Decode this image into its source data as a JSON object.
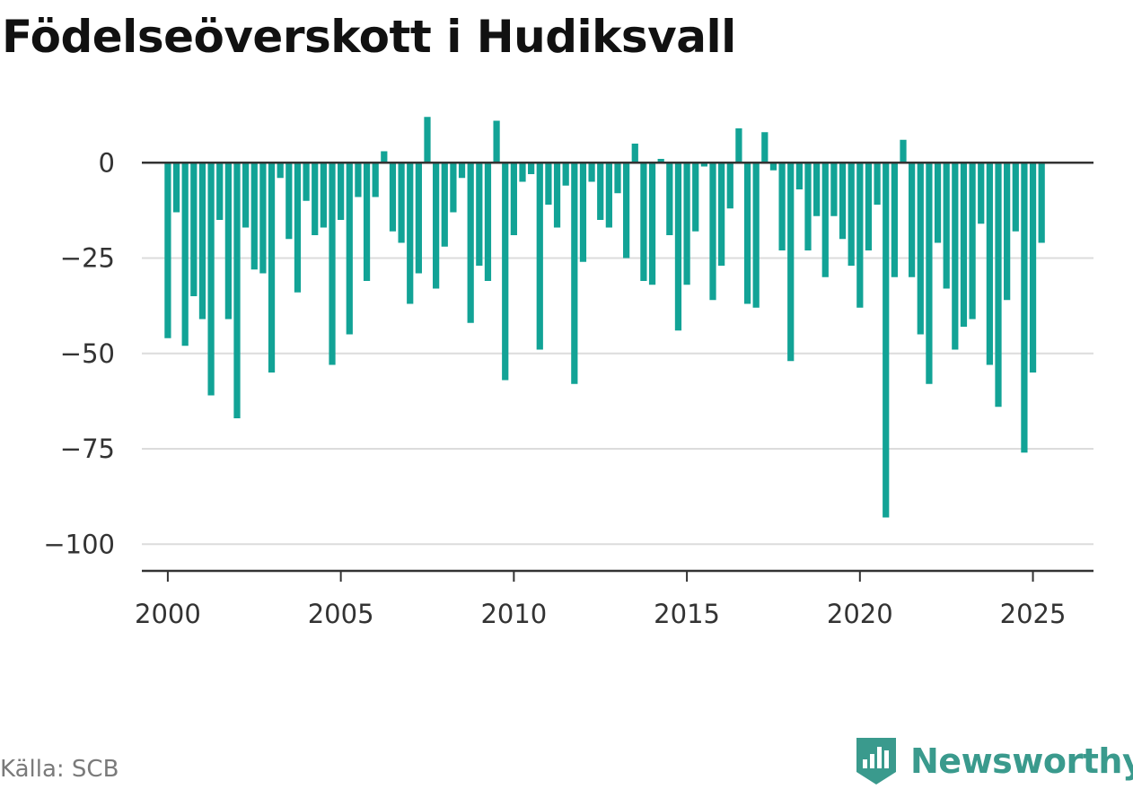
{
  "title": "Födelseöverskott i Hudiksvall",
  "source": "Källa: SCB",
  "brand": {
    "name": "Newsworthy",
    "icon": "newsworthy-logo-icon",
    "color": "#3a9a8d"
  },
  "chart_data": {
    "type": "bar",
    "title": "Födelseöverskott i Hudiksvall",
    "xlabel": "",
    "ylabel": "",
    "frequency": "monthly-quarterly",
    "x_start": 2000.0,
    "x_step": 0.25,
    "xlim": [
      1999.25,
      2026.75
    ],
    "ylim": [
      -107,
      13
    ],
    "yticks": [
      0,
      -25,
      -50,
      -75,
      -100
    ],
    "ytick_labels": [
      "0",
      "−25",
      "−50",
      "−75",
      "−100"
    ],
    "xticks": [
      2000,
      2005,
      2010,
      2015,
      2020,
      2025
    ],
    "xtick_labels": [
      "2000",
      "2005",
      "2010",
      "2015",
      "2020",
      "2025"
    ],
    "grid": true,
    "bar_color": "#12a396",
    "values": [
      -46,
      -13,
      -48,
      -35,
      -41,
      -61,
      -15,
      -41,
      -67,
      -17,
      -28,
      -29,
      -55,
      -4,
      -20,
      -34,
      -10,
      -19,
      -17,
      -53,
      -15,
      -45,
      -9,
      -31,
      -9,
      3,
      -18,
      -21,
      -37,
      -29,
      12,
      -33,
      -22,
      -13,
      -4,
      -42,
      -27,
      -31,
      11,
      -57,
      -19,
      -5,
      -3,
      -49,
      -11,
      -17,
      -6,
      -58,
      -26,
      -5,
      -15,
      -17,
      -8,
      -25,
      5,
      -31,
      -32,
      1,
      -19,
      -44,
      -32,
      -18,
      -1,
      -36,
      -27,
      -12,
      9,
      -37,
      -38,
      8,
      -2,
      -23,
      -52,
      -7,
      -23,
      -14,
      -30,
      -14,
      -20,
      -27,
      -38,
      -23,
      -11,
      -93,
      -30,
      6,
      -30,
      -45,
      -58,
      -21,
      -33,
      -49,
      -43,
      -41,
      -16,
      -53,
      -64,
      -36,
      -18,
      -76,
      -55,
      -21
    ]
  }
}
